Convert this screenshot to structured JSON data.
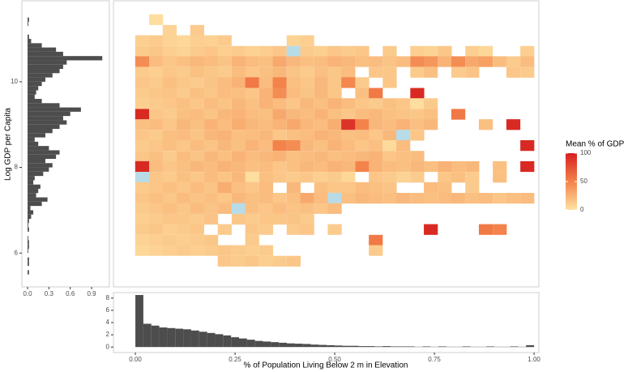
{
  "chart_data": [
    {
      "type": "heatmap",
      "x": [
        0.017,
        0.052,
        0.086,
        0.121,
        0.155,
        0.19,
        0.224,
        0.259,
        0.293,
        0.328,
        0.362,
        0.397,
        0.431,
        0.466,
        0.5,
        0.534,
        0.569,
        0.603,
        0.638,
        0.672,
        0.707,
        0.741,
        0.776,
        0.81,
        0.845,
        0.879,
        0.914,
        0.948,
        0.983
      ],
      "y": [
        11.45,
        11.2,
        10.96,
        10.71,
        10.47,
        10.22,
        9.98,
        9.73,
        9.49,
        9.24,
        9.0,
        8.75,
        8.51,
        8.26,
        8.02,
        7.77,
        7.53,
        7.28,
        7.04,
        6.79,
        6.55,
        6.3,
        6.06,
        5.81
      ],
      "values": [
        [
          null,
          2,
          null,
          null,
          null,
          null,
          null,
          null,
          null,
          null,
          null,
          null,
          null,
          null,
          null,
          null,
          null,
          null,
          null,
          null,
          null,
          null,
          null,
          null,
          null,
          null,
          null,
          null,
          null
        ],
        [
          null,
          null,
          8,
          null,
          12,
          null,
          null,
          null,
          null,
          null,
          null,
          null,
          null,
          null,
          null,
          null,
          null,
          null,
          null,
          null,
          null,
          null,
          null,
          null,
          null,
          null,
          null,
          null,
          null
        ],
        [
          10,
          12,
          8,
          6,
          10,
          9,
          12,
          null,
          null,
          null,
          null,
          8,
          10,
          null,
          null,
          null,
          null,
          null,
          null,
          null,
          null,
          null,
          null,
          null,
          null,
          null,
          null,
          null,
          null
        ],
        [
          12,
          14,
          10,
          8,
          12,
          15,
          10,
          12,
          9,
          11,
          14,
          -5,
          12,
          10,
          15,
          12,
          14,
          null,
          12,
          null,
          10,
          8,
          14,
          null,
          10,
          6,
          null,
          null,
          10
        ],
        [
          45,
          20,
          15,
          18,
          22,
          20,
          16,
          25,
          20,
          18,
          30,
          22,
          18,
          20,
          25,
          22,
          18,
          20,
          16,
          20,
          45,
          40,
          25,
          45,
          30,
          35,
          20,
          12,
          20
        ],
        [
          12,
          10,
          15,
          12,
          18,
          14,
          12,
          20,
          15,
          18,
          22,
          16,
          12,
          18,
          14,
          20,
          null,
          15,
          14,
          null,
          12,
          18,
          null,
          12,
          16,
          null,
          null,
          15,
          12
        ],
        [
          15,
          12,
          18,
          14,
          12,
          16,
          20,
          25,
          55,
          20,
          50,
          18,
          15,
          22,
          14,
          48,
          12,
          null,
          15,
          null,
          null,
          null,
          null,
          null,
          null,
          null,
          null,
          null,
          null
        ],
        [
          12,
          14,
          16,
          12,
          18,
          15,
          20,
          18,
          15,
          25,
          45,
          20,
          16,
          22,
          15,
          null,
          18,
          55,
          null,
          null,
          95,
          null,
          null,
          null,
          null,
          null,
          null,
          null,
          null
        ],
        [
          10,
          12,
          15,
          18,
          14,
          20,
          16,
          22,
          18,
          25,
          20,
          15,
          22,
          18,
          25,
          20,
          15,
          12,
          18,
          15,
          2,
          12,
          null,
          null,
          null,
          null,
          null,
          null,
          null
        ],
        [
          95,
          15,
          12,
          18,
          20,
          16,
          22,
          25,
          20,
          18,
          30,
          22,
          20,
          25,
          18,
          15,
          20,
          22,
          18,
          16,
          14,
          18,
          null,
          55,
          null,
          null,
          null,
          null,
          null
        ],
        [
          18,
          20,
          15,
          22,
          18,
          25,
          20,
          28,
          22,
          20,
          25,
          30,
          22,
          20,
          28,
          90,
          50,
          22,
          20,
          25,
          18,
          22,
          null,
          null,
          null,
          18,
          null,
          95,
          null
        ],
        [
          15,
          12,
          18,
          20,
          16,
          22,
          25,
          18,
          20,
          22,
          15,
          18,
          20,
          25,
          22,
          18,
          20,
          15,
          22,
          -5,
          15,
          null,
          null,
          null,
          null,
          null,
          null,
          null,
          null
        ],
        [
          12,
          15,
          18,
          14,
          20,
          16,
          22,
          18,
          25,
          20,
          50,
          45,
          22,
          18,
          25,
          20,
          15,
          18,
          4,
          20,
          null,
          null,
          null,
          null,
          null,
          null,
          null,
          null,
          95
        ],
        [
          15,
          18,
          12,
          20,
          16,
          22,
          18,
          25,
          20,
          22,
          25,
          18,
          20,
          22,
          18,
          20,
          22,
          25,
          15,
          18,
          20,
          null,
          null,
          null,
          null,
          null,
          null,
          null,
          null
        ],
        [
          95,
          20,
          15,
          18,
          22,
          20,
          25,
          22,
          18,
          20,
          15,
          18,
          22,
          20,
          25,
          22,
          50,
          25,
          20,
          18,
          22,
          18,
          25,
          20,
          22,
          null,
          18,
          null,
          95
        ],
        [
          -5,
          15,
          12,
          18,
          14,
          20,
          16,
          22,
          2,
          18,
          15,
          12,
          14,
          10,
          12,
          6,
          null,
          15,
          12,
          8,
          12,
          null,
          15,
          18,
          12,
          null,
          18,
          null,
          null
        ],
        [
          12,
          15,
          18,
          14,
          20,
          16,
          28,
          18,
          15,
          20,
          null,
          22,
          null,
          18,
          14,
          15,
          20,
          18,
          16,
          null,
          null,
          20,
          18,
          null,
          12,
          null,
          null,
          null,
          null
        ],
        [
          15,
          18,
          14,
          20,
          16,
          18,
          15,
          22,
          18,
          20,
          15,
          18,
          30,
          20,
          -5,
          18,
          22,
          20,
          18,
          22,
          20,
          18,
          20,
          22,
          18,
          20,
          15,
          18,
          20
        ],
        [
          12,
          15,
          18,
          14,
          20,
          16,
          20,
          -5,
          18,
          15,
          20,
          16,
          18,
          15,
          20,
          null,
          null,
          null,
          null,
          null,
          null,
          null,
          null,
          null,
          null,
          null,
          null,
          null,
          null
        ],
        [
          10,
          12,
          15,
          14,
          12,
          16,
          null,
          14,
          12,
          15,
          14,
          16,
          12,
          null,
          null,
          null,
          null,
          null,
          null,
          null,
          null,
          null,
          null,
          null,
          null,
          null,
          null,
          null,
          null
        ],
        [
          12,
          14,
          10,
          12,
          15,
          null,
          12,
          null,
          14,
          12,
          null,
          12,
          15,
          null,
          12,
          null,
          null,
          null,
          null,
          null,
          null,
          95,
          null,
          null,
          null,
          55,
          50,
          null,
          null
        ],
        [
          8,
          10,
          12,
          10,
          12,
          14,
          null,
          null,
          12,
          null,
          null,
          null,
          null,
          null,
          null,
          null,
          null,
          55,
          null,
          null,
          null,
          null,
          null,
          null,
          null,
          null,
          null,
          null,
          null
        ],
        [
          6,
          8,
          10,
          12,
          10,
          12,
          14,
          12,
          10,
          12,
          null,
          null,
          null,
          null,
          null,
          null,
          null,
          12,
          null,
          null,
          null,
          null,
          null,
          null,
          null,
          null,
          null,
          null,
          null
        ],
        [
          null,
          null,
          null,
          null,
          null,
          null,
          15,
          12,
          14,
          10,
          12,
          14,
          null,
          null,
          null,
          null,
          null,
          null,
          null,
          null,
          null,
          null,
          null,
          null,
          null,
          null,
          null,
          null,
          null
        ]
      ],
      "xlim": [
        -0.055,
        1.012
      ],
      "ylim": [
        5.21,
        11.89
      ],
      "legend_title": "Mean % of GDP",
      "colorlim": [
        0,
        100
      ],
      "colorbar_ticks": [
        0,
        50,
        100
      ],
      "colorscale": [
        "#fee2a2",
        "#f3834a",
        "#d61f1f"
      ],
      "below_color": "#b7dce8"
    },
    {
      "type": "histogram",
      "orientation": "horizontal",
      "color": "#4d4d4d",
      "bins": [
        5.5,
        5.6,
        5.7,
        5.8,
        5.9,
        6.0,
        6.1,
        6.2,
        6.3,
        6.4,
        6.5,
        6.6,
        6.7,
        6.8,
        6.9,
        7.0,
        7.1,
        7.2,
        7.3,
        7.4,
        7.5,
        7.6,
        7.7,
        7.8,
        7.9,
        8.0,
        8.1,
        8.2,
        8.3,
        8.4,
        8.5,
        8.6,
        8.7,
        8.8,
        8.9,
        9.0,
        9.1,
        9.2,
        9.3,
        9.4,
        9.5,
        9.6,
        9.7,
        9.8,
        9.9,
        10.0,
        10.1,
        10.2,
        10.3,
        10.4,
        10.5,
        10.6,
        10.7,
        10.8,
        10.9,
        11.0,
        11.1,
        11.2,
        11.3,
        11.4,
        11.5
      ],
      "values": [
        0.02,
        0,
        0.02,
        0.02,
        0,
        0.01,
        0.02,
        0.02,
        0.01,
        0,
        0.02,
        0.01,
        0.02,
        0.05,
        0.08,
        0.04,
        0.2,
        0.28,
        0.12,
        0.15,
        0.18,
        0.08,
        0.1,
        0.22,
        0.3,
        0.35,
        0.25,
        0.4,
        0.45,
        0.3,
        0.15,
        0.1,
        0.25,
        0.35,
        0.45,
        0.55,
        0.5,
        0.6,
        0.75,
        0.45,
        0.2,
        0.1,
        0.12,
        0.15,
        0.2,
        0.25,
        0.35,
        0.45,
        0.5,
        0.55,
        1.05,
        0.5,
        0.4,
        0.2,
        0.05,
        0.02,
        0,
        0,
        0.01,
        0.02
      ],
      "xlim": [
        -0.08,
        1.15
      ],
      "xticks": [
        {
          "value": 0,
          "label": "0.0"
        },
        0.3,
        0.6,
        0.9
      ],
      "ylim": [
        5.21,
        11.89
      ],
      "yticks": [
        6,
        8,
        10
      ],
      "ylabel": "Log GDP per Capita"
    },
    {
      "type": "histogram",
      "orientation": "vertical",
      "color": "#4d4d4d",
      "bins": [
        0,
        0.02,
        0.04,
        0.06,
        0.08,
        0.1,
        0.12,
        0.14,
        0.16,
        0.18,
        0.2,
        0.22,
        0.24,
        0.26,
        0.28,
        0.3,
        0.32,
        0.34,
        0.36,
        0.38,
        0.4,
        0.42,
        0.44,
        0.46,
        0.48,
        0.5,
        0.52,
        0.54,
        0.56,
        0.58,
        0.6,
        0.62,
        0.64,
        0.66,
        0.68,
        0.7,
        0.72,
        0.74,
        0.76,
        0.78,
        0.8,
        0.82,
        0.84,
        0.86,
        0.88,
        0.9,
        0.92,
        0.94,
        0.96,
        0.98,
        1.0
      ],
      "values": [
        8.5,
        3.8,
        3.5,
        3.2,
        3.1,
        3.0,
        2.9,
        2.7,
        2.5,
        2.3,
        2.1,
        1.9,
        1.6,
        1.4,
        1.2,
        1.0,
        0.9,
        0.8,
        0.7,
        0.6,
        0.55,
        0.5,
        0.4,
        0.35,
        0.3,
        0.25,
        0.2,
        0.2,
        0.15,
        0.15,
        0.1,
        0.15,
        0.1,
        0.1,
        0.1,
        0.05,
        0.1,
        0.05,
        0.1,
        0.05,
        0.05,
        0.1,
        0.05,
        0.05,
        0.1,
        0.05,
        0.05,
        0.1,
        0.05,
        0.3
      ],
      "xlim": [
        -0.055,
        1.012
      ],
      "xticks": [
        {
          "value": 0,
          "label": "0.00"
        },
        {
          "value": 0.25,
          "label": "0.25"
        },
        {
          "value": 0.5,
          "label": "0.50"
        },
        {
          "value": 0.75,
          "label": "0.75"
        },
        {
          "value": 1,
          "label": "1.00"
        }
      ],
      "ylim": [
        -0.9,
        8.9
      ],
      "yticks": [
        0,
        2,
        4,
        6,
        8
      ],
      "xlabel": "% of Population Living Below 2 m in Elevation"
    }
  ]
}
